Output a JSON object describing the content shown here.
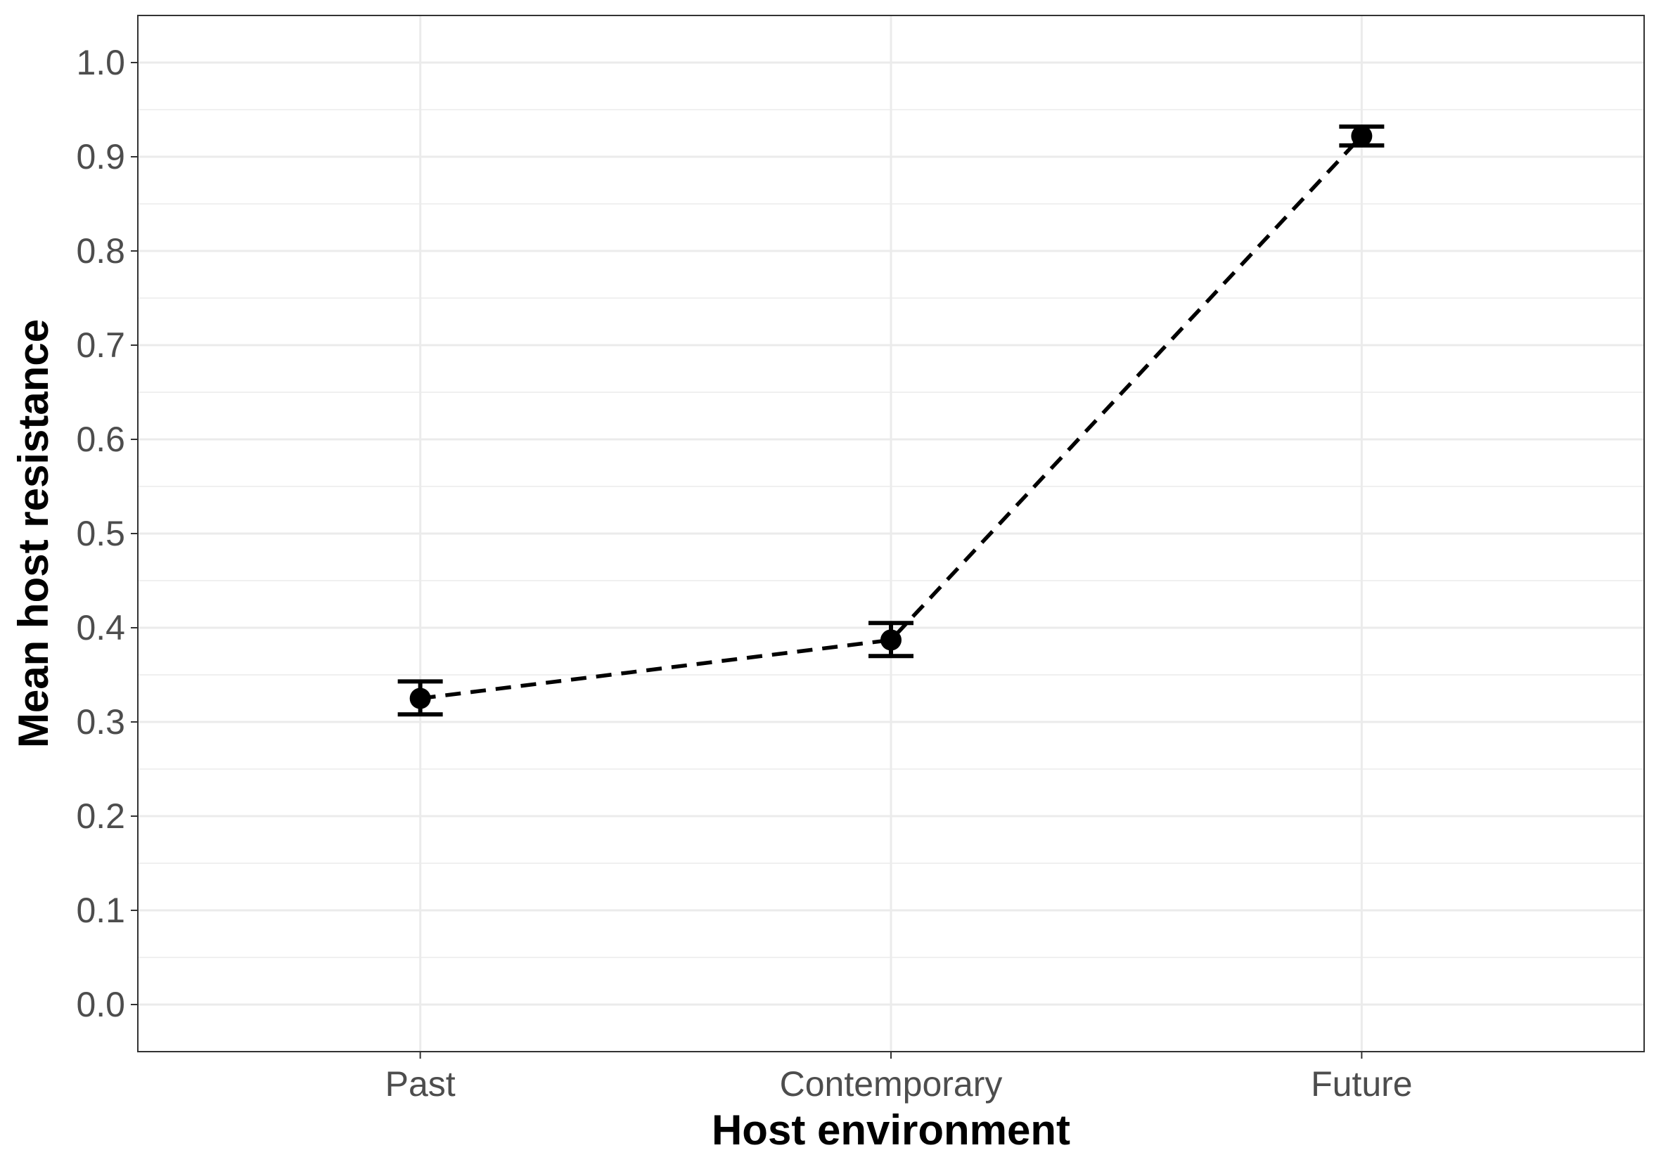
{
  "chart_data": {
    "type": "line",
    "title": "",
    "xlabel": "Host environment",
    "ylabel": "Mean host resistance",
    "categories": [
      "Past",
      "Contemporary",
      "Future"
    ],
    "series": [
      {
        "values": [
          0.325,
          0.387,
          0.922
        ],
        "error_lower": [
          0.308,
          0.37,
          0.912
        ],
        "error_upper": [
          0.343,
          0.405,
          0.932
        ],
        "line_style": "dashed",
        "color": "#000000"
      }
    ],
    "ylim": [
      -0.05,
      1.05
    ],
    "yticks": [
      0.0,
      0.1,
      0.2,
      0.3,
      0.4,
      0.5,
      0.6,
      0.7,
      0.8,
      0.9,
      1.0
    ],
    "ytick_labels": [
      "0.0",
      "0.1",
      "0.2",
      "0.3",
      "0.4",
      "0.5",
      "0.6",
      "0.7",
      "0.8",
      "0.9",
      "1.0"
    ],
    "grid": true,
    "legend": "none",
    "colors": {
      "grid": "#ebebeb",
      "panel_border": "#333333",
      "tick_text": "#4d4d4d",
      "data": "#000000"
    }
  }
}
